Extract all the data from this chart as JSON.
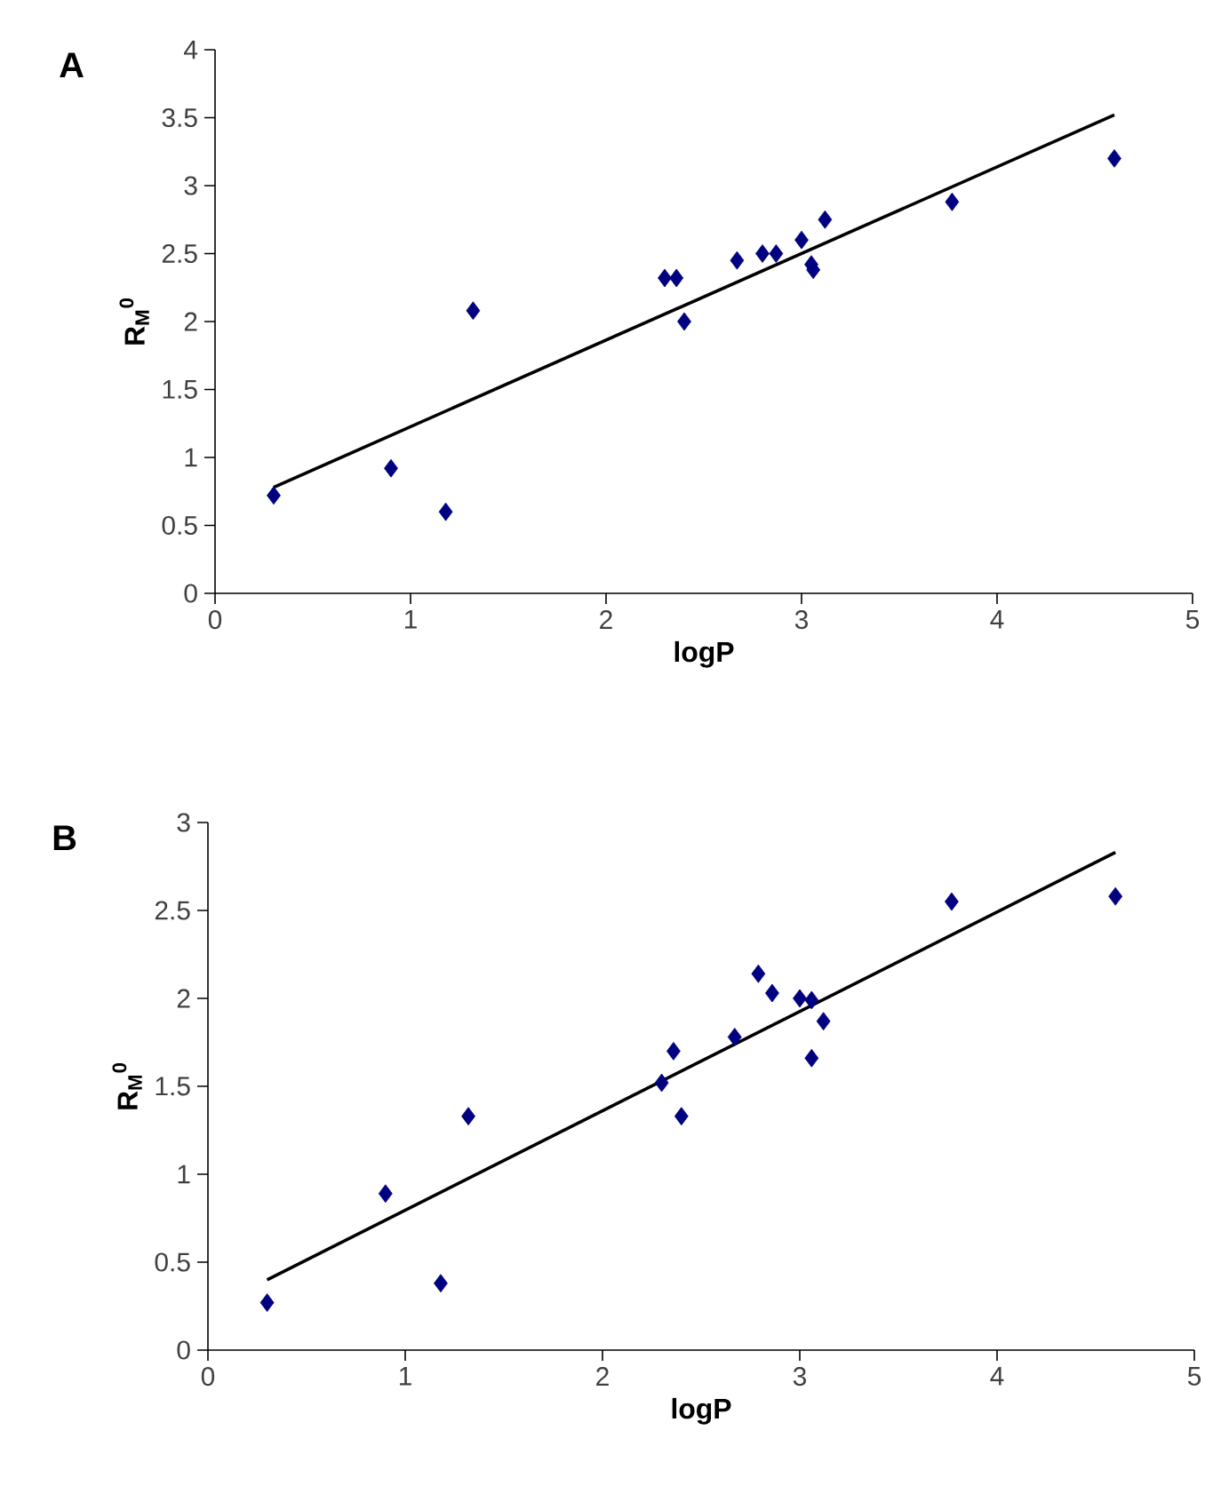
{
  "chart_data": [
    {
      "type": "scatter",
      "title": "A",
      "xlabel": "logP",
      "ylabel": "R$_{M}$$^{0}$",
      "grid": false,
      "xlim": [
        0,
        5
      ],
      "xticks": [
        0,
        1,
        2,
        3,
        4,
        5
      ],
      "ylim": [
        0,
        4
      ],
      "yticks": [
        0,
        0.5,
        1,
        1.5,
        2,
        2.5,
        3,
        3.5,
        4
      ],
      "series": [
        {
          "marker": "diamond",
          "color": "#000080",
          "x": [
            0.3,
            0.9,
            1.18,
            1.32,
            2.3,
            2.36,
            2.4,
            2.67,
            2.8,
            2.87,
            3.0,
            3.05,
            3.06,
            3.12,
            3.77,
            4.6
          ],
          "values": [
            0.72,
            0.92,
            0.6,
            2.08,
            2.32,
            2.32,
            2.0,
            2.45,
            2.5,
            2.5,
            2.6,
            2.42,
            2.38,
            2.75,
            2.88,
            3.2
          ]
        },
        {
          "type": "line",
          "marker": "none",
          "color": "#000000",
          "x": [
            0.3,
            4.6
          ],
          "values": [
            0.78,
            3.52
          ]
        }
      ]
    },
    {
      "type": "scatter",
      "title": "B",
      "xlabel": "logP",
      "ylabel": "R$_{M}$$^{0}$",
      "grid": false,
      "xlim": [
        0,
        5
      ],
      "xticks": [
        0,
        1,
        2,
        3,
        4,
        5
      ],
      "ylim": [
        0,
        3
      ],
      "yticks": [
        0,
        0.5,
        1,
        1.5,
        2,
        2.5,
        3
      ],
      "series": [
        {
          "marker": "diamond",
          "color": "#000080",
          "x": [
            0.3,
            0.9,
            1.18,
            1.32,
            2.3,
            2.36,
            2.4,
            2.67,
            2.79,
            2.86,
            3.0,
            3.06,
            3.06,
            3.12,
            3.77,
            4.6
          ],
          "values": [
            0.27,
            0.89,
            0.38,
            1.33,
            1.52,
            1.7,
            1.33,
            1.78,
            2.14,
            2.03,
            2.0,
            1.99,
            1.66,
            1.87,
            2.55,
            2.58
          ]
        },
        {
          "type": "line",
          "marker": "none",
          "color": "#000000",
          "x": [
            0.3,
            4.6
          ],
          "values": [
            0.4,
            2.83
          ]
        }
      ]
    }
  ]
}
